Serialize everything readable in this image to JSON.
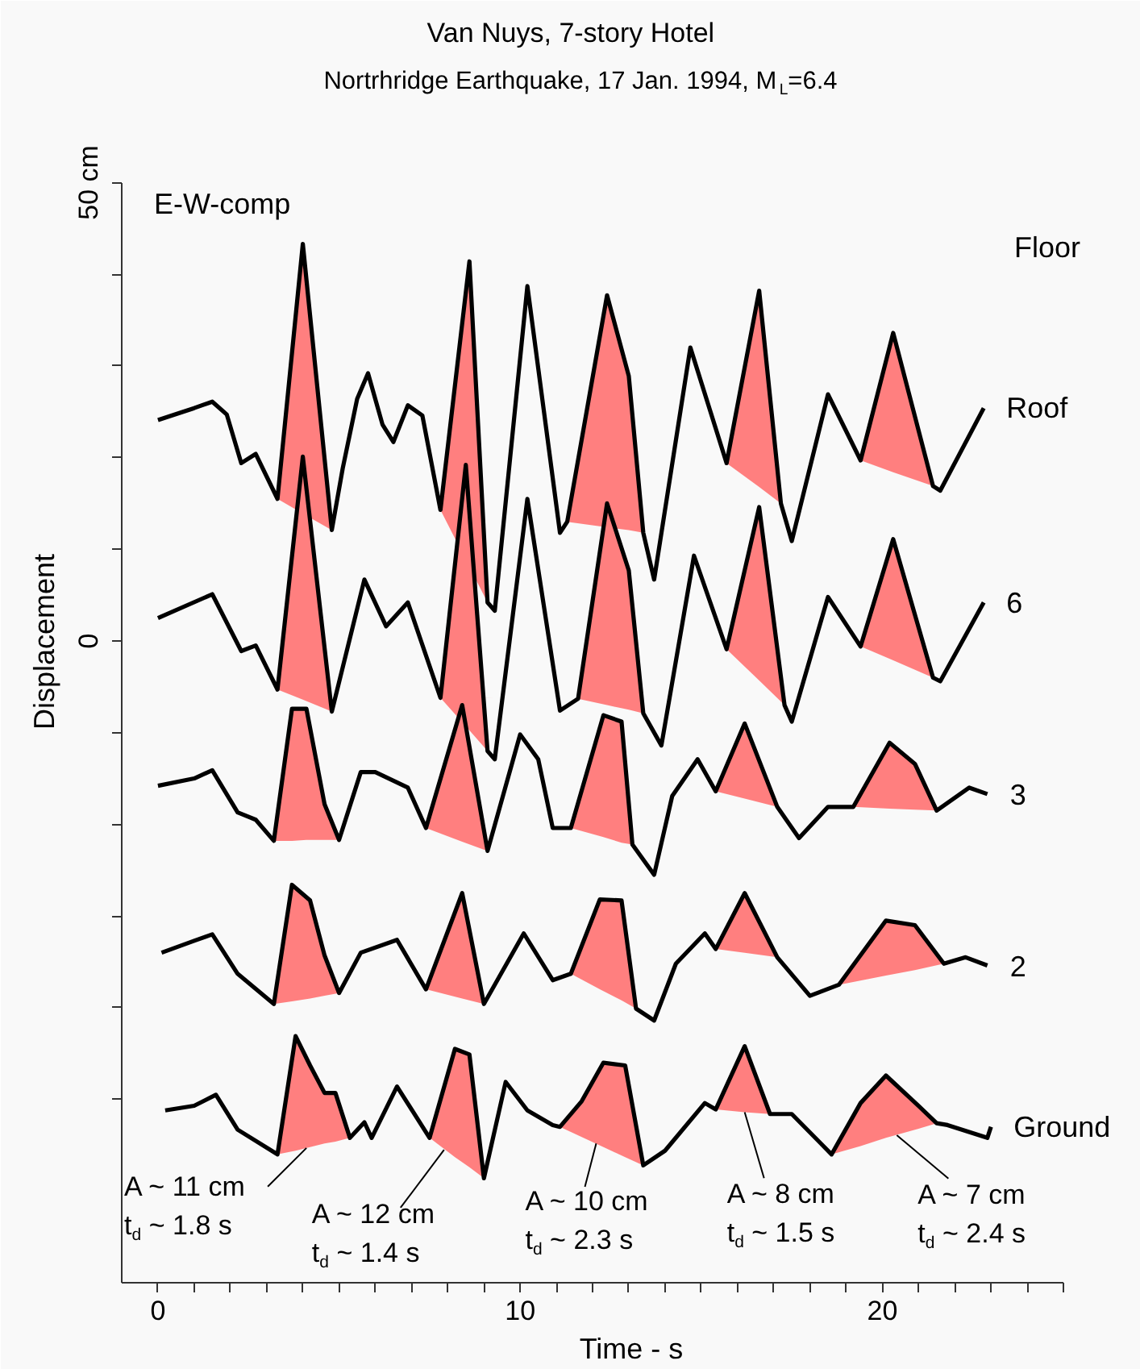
{
  "chart_data": {
    "type": "line",
    "title": "Van Nuys, 7-story Hotel",
    "subtitle": "Nortrhridge Earthquake, 17 Jan. 1994, M$_{L}$=6.4",
    "xlabel": "Time - s",
    "ylabel": "Displacement",
    "legend_title": "Floor",
    "xlim": [
      -1,
      25
    ],
    "xticks": [
      0,
      {
        "value": 1,
        "label": null
      },
      {
        "value": 2,
        "label": null
      },
      {
        "value": 3,
        "label": null
      },
      {
        "value": 4,
        "label": null
      },
      {
        "value": 5,
        "label": null
      },
      {
        "value": 6,
        "label": null
      },
      {
        "value": 7,
        "label": null
      },
      {
        "value": 8,
        "label": null
      },
      {
        "value": 9,
        "label": null
      },
      10,
      {
        "value": 11,
        "label": null
      },
      {
        "value": 12,
        "label": null
      },
      {
        "value": 13,
        "label": null
      },
      {
        "value": 14,
        "label": null
      },
      {
        "value": 15,
        "label": null
      },
      {
        "value": 16,
        "label": null
      },
      {
        "value": 17,
        "label": null
      },
      {
        "value": 18,
        "label": null
      },
      {
        "value": 19,
        "label": null
      },
      20,
      {
        "value": 21,
        "label": null
      },
      {
        "value": 22,
        "label": null
      },
      {
        "value": 23,
        "label": null
      },
      {
        "value": 24,
        "label": null
      },
      {
        "value": 25,
        "label": null
      }
    ],
    "ylim": [
      -70,
      50
    ],
    "yticks": [
      {
        "value": 50,
        "label": "50 cm"
      },
      {
        "value": 40,
        "label": null
      },
      {
        "value": 30,
        "label": null
      },
      {
        "value": 20,
        "label": null
      },
      {
        "value": 10,
        "label": null
      },
      0,
      {
        "value": -10,
        "label": null
      },
      {
        "value": -20,
        "label": null
      },
      {
        "value": -30,
        "label": null
      },
      {
        "value": -40,
        "label": null
      },
      {
        "value": -50,
        "label": null
      }
    ],
    "annotations": [
      "E-W-comp",
      {
        "text": "A ~ 11 cm\nt$_{d}$ ~ 1.8 s",
        "x": 4.1,
        "y": -55.3
      },
      {
        "text": "A ~ 12 cm\nt$_{d}$ ~ 1.4 s",
        "x": 7.9,
        "y": -55.5
      },
      {
        "text": "A ~ 10 cm\nt$_{d}$ ~ 2.3 s",
        "x": 12.1,
        "y": -54.8
      },
      {
        "text": "A ~ 8 cm\nt$_{d}$ ~ 1.5 s",
        "x": 16.2,
        "y": -51.4
      },
      {
        "text": "A ~ 7 cm\nt$_{d}$ ~ 2.4 s",
        "x": 20.4,
        "y": -53.9
      }
    ],
    "series": [
      {
        "name": "Roof",
        "color": "#000000",
        "x": [
          0.0,
          1.0,
          1.5,
          1.9,
          2.3,
          2.7,
          3.3,
          4.0,
          4.8,
          5.1,
          5.5,
          5.8,
          6.2,
          6.5,
          6.9,
          7.3,
          7.8,
          8.6,
          9.1,
          9.3,
          10.2,
          11.1,
          11.3,
          12.4,
          13.0,
          13.4,
          13.7,
          14.7,
          15.7,
          16.6,
          17.2,
          17.5,
          18.5,
          19.4,
          20.3,
          21.4,
          21.6,
          22.8
        ],
        "values": [
          24.1,
          25.4,
          26.1,
          24.7,
          19.4,
          20.4,
          15.5,
          43.3,
          12.1,
          18.8,
          26.4,
          29.2,
          23.6,
          21.7,
          25.7,
          24.6,
          14.3,
          41.4,
          4.2,
          3.3,
          38.7,
          11.8,
          13.0,
          37.7,
          28.9,
          11.8,
          6.7,
          32.0,
          19.4,
          38.2,
          15.0,
          10.9,
          26.9,
          19.7,
          33.6,
          16.9,
          16.4,
          25.4
        ],
        "lower": [
          null,
          null,
          null,
          null,
          null,
          null,
          15.5,
          13.9,
          12.1,
          null,
          null,
          null,
          null,
          null,
          null,
          null,
          14.3,
          8.1,
          4.2,
          null,
          null,
          null,
          13.0,
          12.4,
          12.1,
          11.8,
          null,
          null,
          19.4,
          16.8,
          15.0,
          null,
          null,
          19.7,
          18.4,
          16.9,
          null,
          null
        ],
        "upper": [
          null,
          null,
          null,
          null,
          null,
          null,
          15.5,
          43.3,
          12.1,
          null,
          null,
          null,
          null,
          null,
          null,
          null,
          14.3,
          41.4,
          4.2,
          null,
          null,
          null,
          13.0,
          37.7,
          28.9,
          11.8,
          null,
          null,
          19.4,
          38.2,
          15.0,
          null,
          null,
          19.7,
          33.6,
          16.9,
          null,
          null
        ]
      },
      {
        "name": "6",
        "color": "#000000",
        "x": [
          0.0,
          1.5,
          2.3,
          2.7,
          3.3,
          4.0,
          4.8,
          5.7,
          6.3,
          6.9,
          7.8,
          8.5,
          9.1,
          9.3,
          10.2,
          11.1,
          11.6,
          12.4,
          13.0,
          13.4,
          13.9,
          14.8,
          15.7,
          16.6,
          17.3,
          17.5,
          18.5,
          19.4,
          20.3,
          21.4,
          21.6,
          22.8
        ],
        "values": [
          2.5,
          5.1,
          -1.1,
          -0.5,
          -5.3,
          20.1,
          -7.7,
          6.7,
          1.6,
          4.2,
          -6.2,
          19.2,
          -12.0,
          -12.9,
          15.5,
          -7.6,
          -6.3,
          15.0,
          7.7,
          -7.9,
          -11.4,
          9.3,
          -0.9,
          14.6,
          -7.0,
          -8.8,
          4.8,
          -0.6,
          11.1,
          -4.0,
          -4.4,
          4.2
        ],
        "lower": [
          null,
          null,
          null,
          null,
          -5.3,
          -6.4,
          -7.7,
          null,
          null,
          null,
          -6.2,
          -9.3,
          -12.0,
          null,
          null,
          null,
          -6.3,
          -7.0,
          -7.5,
          -7.9,
          null,
          null,
          -0.9,
          -4.3,
          -7.0,
          null,
          null,
          -0.6,
          -2.1,
          -4.0,
          null,
          null
        ],
        "upper": [
          null,
          null,
          null,
          null,
          -5.3,
          20.1,
          -7.7,
          null,
          null,
          null,
          -6.2,
          19.2,
          -12.0,
          null,
          null,
          null,
          -6.3,
          15.0,
          7.7,
          -7.9,
          null,
          null,
          -0.9,
          14.6,
          -7.0,
          null,
          null,
          -0.6,
          11.1,
          -4.0,
          null,
          null
        ]
      },
      {
        "name": "3",
        "color": "#000000",
        "x": [
          0.0,
          1.0,
          1.5,
          2.2,
          2.7,
          3.2,
          3.7,
          4.1,
          4.6,
          5.0,
          5.6,
          6.0,
          6.9,
          7.4,
          8.4,
          9.1,
          10.0,
          10.5,
          10.9,
          11.4,
          12.3,
          12.8,
          13.1,
          13.7,
          14.2,
          14.9,
          15.4,
          16.2,
          17.1,
          17.7,
          18.5,
          19.2,
          20.2,
          20.9,
          21.5,
          22.4,
          22.9
        ],
        "values": [
          -15.8,
          -15.0,
          -14.1,
          -18.7,
          -19.5,
          -21.8,
          -7.4,
          -7.4,
          -17.8,
          -21.7,
          -14.3,
          -14.3,
          -16.0,
          -20.4,
          -7.0,
          -22.9,
          -10.2,
          -12.9,
          -20.4,
          -20.4,
          -8.1,
          -8.8,
          -22.2,
          -25.5,
          -16.9,
          -12.9,
          -16.4,
          -9.0,
          -18.1,
          -21.5,
          -18.1,
          -18.1,
          -11.1,
          -13.4,
          -18.5,
          -16.0,
          -16.7
        ],
        "lower": [
          null,
          null,
          null,
          null,
          null,
          -21.8,
          -21.8,
          -21.7,
          -21.7,
          -21.7,
          null,
          null,
          null,
          -20.4,
          -21.9,
          -22.9,
          null,
          null,
          null,
          -20.4,
          -21.4,
          -22.0,
          -22.2,
          null,
          null,
          null,
          -16.4,
          -17.2,
          -18.1,
          null,
          null,
          -18.1,
          -18.3,
          -18.4,
          -18.5,
          null,
          null
        ],
        "upper": [
          null,
          null,
          null,
          null,
          null,
          -21.8,
          -7.4,
          -7.4,
          -17.8,
          -21.7,
          null,
          null,
          null,
          -20.4,
          -7.0,
          -22.9,
          null,
          null,
          null,
          -20.4,
          -8.1,
          -8.8,
          -22.2,
          null,
          null,
          null,
          -16.4,
          -9.0,
          -18.1,
          null,
          null,
          -18.1,
          -11.1,
          -13.4,
          -18.5,
          null,
          null
        ]
      },
      {
        "name": "2",
        "color": "#000000",
        "x": [
          0.1,
          1.0,
          1.5,
          2.2,
          3.2,
          3.7,
          4.2,
          4.6,
          5.0,
          5.6,
          6.6,
          7.4,
          8.4,
          9.0,
          10.1,
          10.9,
          11.4,
          12.2,
          12.8,
          13.2,
          13.7,
          14.3,
          15.1,
          15.4,
          16.2,
          17.1,
          18.0,
          18.8,
          20.1,
          20.9,
          21.7,
          22.3,
          22.9
        ],
        "values": [
          -34.0,
          -32.7,
          -32.0,
          -36.3,
          -39.6,
          -26.6,
          -28.3,
          -34.3,
          -38.4,
          -34.0,
          -32.6,
          -38.0,
          -27.5,
          -39.6,
          -31.9,
          -37.0,
          -36.3,
          -28.2,
          -28.3,
          -40.1,
          -41.4,
          -35.2,
          -31.9,
          -33.6,
          -27.5,
          -34.5,
          -38.7,
          -37.5,
          -30.5,
          -31.0,
          -35.2,
          -34.5,
          -35.4
        ],
        "lower": [
          null,
          null,
          null,
          null,
          -39.6,
          -39.3,
          -39.0,
          -38.7,
          -38.4,
          null,
          null,
          -38.0,
          -39.0,
          -39.6,
          null,
          null,
          -36.3,
          -38.0,
          -39.2,
          -40.1,
          null,
          null,
          null,
          -33.6,
          -34.0,
          -34.5,
          null,
          -37.5,
          -36.5,
          -35.9,
          -35.2,
          null,
          null
        ],
        "upper": [
          null,
          null,
          null,
          null,
          -39.6,
          -26.6,
          -28.3,
          -34.3,
          -38.4,
          null,
          null,
          -38.0,
          -27.5,
          -39.6,
          null,
          null,
          -36.3,
          -28.2,
          -28.3,
          -40.1,
          null,
          null,
          null,
          -33.6,
          -27.5,
          -34.5,
          null,
          -37.5,
          -30.5,
          -31.0,
          -35.2,
          null,
          null
        ]
      },
      {
        "name": "Ground",
        "color": "#000000",
        "x": [
          0.2,
          1.0,
          1.6,
          2.2,
          3.3,
          3.8,
          4.2,
          4.6,
          4.9,
          5.3,
          5.7,
          5.9,
          6.6,
          7.5,
          8.2,
          8.6,
          9.0,
          9.6,
          10.2,
          10.9,
          11.1,
          11.7,
          12.3,
          12.9,
          13.4,
          14.0,
          15.1,
          15.4,
          16.2,
          16.9,
          17.5,
          18.6,
          19.4,
          20.1,
          21.0,
          21.5,
          21.8,
          22.9,
          23.0
        ],
        "values": [
          -51.2,
          -50.7,
          -49.5,
          -53.3,
          -56.0,
          -43.1,
          -46.3,
          -49.3,
          -49.3,
          -54.2,
          -52.5,
          -54.2,
          -48.6,
          -54.2,
          -44.5,
          -45.1,
          -58.6,
          -48.1,
          -51.2,
          -52.8,
          -53.0,
          -50.2,
          -46.0,
          -46.3,
          -57.2,
          -55.6,
          -50.4,
          -51.1,
          -44.2,
          -51.6,
          -51.6,
          -56.0,
          -50.4,
          -47.4,
          -50.7,
          -52.6,
          -52.8,
          -54.2,
          -53.0
        ],
        "lower": [
          null,
          null,
          null,
          null,
          -56.0,
          -55.6,
          -55.2,
          -54.8,
          -54.6,
          -54.2,
          null,
          null,
          null,
          -54.2,
          -56.3,
          -57.4,
          -58.6,
          null,
          null,
          null,
          -53.0,
          -54.1,
          -55.2,
          -56.3,
          -57.2,
          null,
          null,
          -51.1,
          -51.4,
          -51.6,
          null,
          -56.0,
          -55.1,
          -54.2,
          -53.2,
          -52.6,
          null,
          null,
          null
        ],
        "upper": [
          null,
          null,
          null,
          null,
          -56.0,
          -43.1,
          -46.3,
          -49.3,
          -49.3,
          -54.2,
          null,
          null,
          null,
          -54.2,
          -44.5,
          -45.1,
          -58.6,
          null,
          null,
          null,
          -53.0,
          -50.2,
          -46.0,
          -46.3,
          -57.2,
          null,
          null,
          -51.1,
          -44.2,
          -51.6,
          null,
          -56.0,
          -50.4,
          -47.4,
          -50.7,
          -52.6,
          null,
          null,
          null
        ]
      }
    ]
  }
}
